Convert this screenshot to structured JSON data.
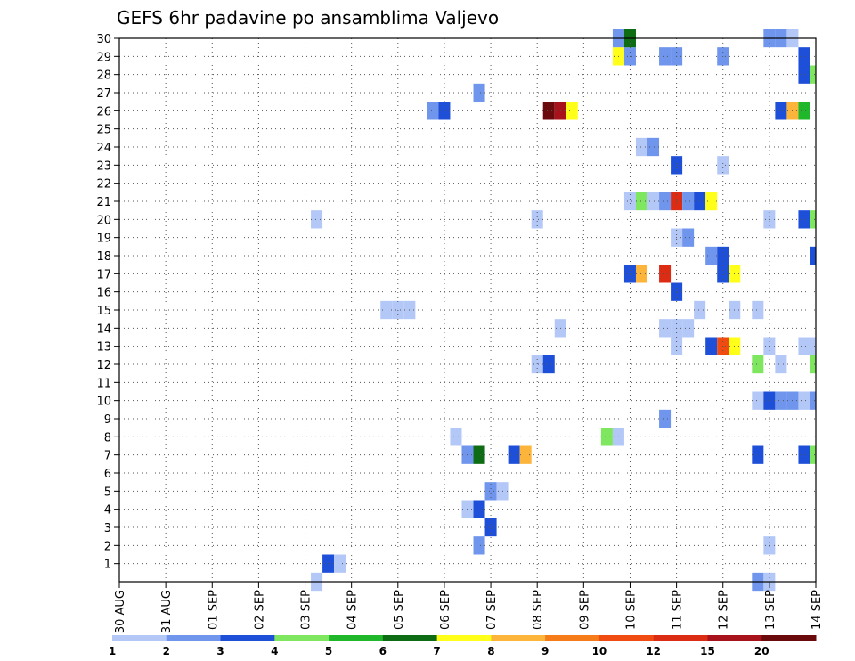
{
  "chart_data": {
    "type": "heatmap",
    "title": "GEFS 6hr padavine po ansamblima Valjevo",
    "xlabel": "",
    "ylabel": "",
    "x_ticks": [
      "30 AUG",
      "31 AUG",
      "01 SEP",
      "02 SEP",
      "03 SEP",
      "04 SEP",
      "05 SEP",
      "06 SEP",
      "07 SEP",
      "08 SEP",
      "09 SEP",
      "10 SEP",
      "11 SEP",
      "12 SEP",
      "13 SEP",
      "14 SEP"
    ],
    "x_range_steps": [
      0,
      60
    ],
    "x_step_hours": 6,
    "y_range": [
      0,
      30
    ],
    "y_ticks": [
      1,
      2,
      3,
      4,
      5,
      6,
      7,
      8,
      9,
      10,
      11,
      12,
      13,
      14,
      15,
      16,
      17,
      18,
      19,
      20,
      21,
      22,
      23,
      24,
      25,
      26,
      27,
      28,
      29,
      30
    ],
    "grid": "dotted",
    "color_levels": [
      {
        "label": "1",
        "color": "#b4c8f8"
      },
      {
        "label": "2",
        "color": "#6f95ec"
      },
      {
        "label": "3",
        "color": "#1e4fd8"
      },
      {
        "label": "4",
        "color": "#7ee65f"
      },
      {
        "label": "5",
        "color": "#20b82a"
      },
      {
        "label": "6",
        "color": "#0d6c14"
      },
      {
        "label": "7",
        "color": "#ffff1a"
      },
      {
        "label": "8",
        "color": "#fcb43a"
      },
      {
        "label": "9",
        "color": "#f57c18"
      },
      {
        "label": "10",
        "color": "#f04c12"
      },
      {
        "label": "12",
        "color": "#dc2c14"
      },
      {
        "label": "15",
        "color": "#a8121a"
      },
      {
        "label": "20",
        "color": "#6a0a0c"
      }
    ],
    "cells": [
      {
        "t": 17,
        "m": 0,
        "c": 0
      },
      {
        "t": 55,
        "m": 0,
        "c": 1
      },
      {
        "t": 56,
        "m": 0,
        "c": 0
      },
      {
        "t": 18,
        "m": 1,
        "c": 2
      },
      {
        "t": 19,
        "m": 1,
        "c": 0
      },
      {
        "t": 31,
        "m": 2,
        "c": 1
      },
      {
        "t": 56,
        "m": 2,
        "c": 0
      },
      {
        "t": 32,
        "m": 3,
        "c": 2
      },
      {
        "t": 30,
        "m": 4,
        "c": 0
      },
      {
        "t": 31,
        "m": 4,
        "c": 2
      },
      {
        "t": 32,
        "m": 5,
        "c": 1
      },
      {
        "t": 33,
        "m": 5,
        "c": 0
      },
      {
        "t": 30,
        "m": 7,
        "c": 1
      },
      {
        "t": 31,
        "m": 7,
        "c": 5
      },
      {
        "t": 34,
        "m": 7,
        "c": 2
      },
      {
        "t": 35,
        "m": 7,
        "c": 7
      },
      {
        "t": 55,
        "m": 7,
        "c": 2
      },
      {
        "t": 59,
        "m": 7,
        "c": 2
      },
      {
        "t": 60,
        "m": 7,
        "c": 3
      },
      {
        "t": 29,
        "m": 8,
        "c": 0
      },
      {
        "t": 42,
        "m": 8,
        "c": 3
      },
      {
        "t": 43,
        "m": 8,
        "c": 0
      },
      {
        "t": 47,
        "m": 9,
        "c": 1
      },
      {
        "t": 55,
        "m": 10,
        "c": 0
      },
      {
        "t": 56,
        "m": 10,
        "c": 2
      },
      {
        "t": 57,
        "m": 10,
        "c": 1
      },
      {
        "t": 58,
        "m": 10,
        "c": 1
      },
      {
        "t": 59,
        "m": 10,
        "c": 0
      },
      {
        "t": 60,
        "m": 10,
        "c": 1
      },
      {
        "t": 36,
        "m": 12,
        "c": 0
      },
      {
        "t": 37,
        "m": 12,
        "c": 2
      },
      {
        "t": 55,
        "m": 12,
        "c": 3
      },
      {
        "t": 57,
        "m": 12,
        "c": 0
      },
      {
        "t": 60,
        "m": 12,
        "c": 3
      },
      {
        "t": 48,
        "m": 13,
        "c": 0
      },
      {
        "t": 51,
        "m": 13,
        "c": 2
      },
      {
        "t": 52,
        "m": 13,
        "c": 9
      },
      {
        "t": 53,
        "m": 13,
        "c": 6
      },
      {
        "t": 56,
        "m": 13,
        "c": 0
      },
      {
        "t": 59,
        "m": 13,
        "c": 0
      },
      {
        "t": 60,
        "m": 13,
        "c": 0
      },
      {
        "t": 38,
        "m": 14,
        "c": 0
      },
      {
        "t": 47,
        "m": 14,
        "c": 0
      },
      {
        "t": 48,
        "m": 14,
        "c": 0
      },
      {
        "t": 49,
        "m": 14,
        "c": 0
      },
      {
        "t": 23,
        "m": 15,
        "c": 0
      },
      {
        "t": 24,
        "m": 15,
        "c": 0
      },
      {
        "t": 25,
        "m": 15,
        "c": 0
      },
      {
        "t": 50,
        "m": 15,
        "c": 0
      },
      {
        "t": 53,
        "m": 15,
        "c": 0
      },
      {
        "t": 55,
        "m": 15,
        "c": 0
      },
      {
        "t": 48,
        "m": 16,
        "c": 2
      },
      {
        "t": 44,
        "m": 17,
        "c": 2
      },
      {
        "t": 45,
        "m": 17,
        "c": 7
      },
      {
        "t": 47,
        "m": 17,
        "c": 10
      },
      {
        "t": 52,
        "m": 17,
        "c": 2
      },
      {
        "t": 53,
        "m": 17,
        "c": 6
      },
      {
        "t": 51,
        "m": 18,
        "c": 1
      },
      {
        "t": 52,
        "m": 18,
        "c": 2
      },
      {
        "t": 60,
        "m": 18,
        "c": 2
      },
      {
        "t": 48,
        "m": 19,
        "c": 0
      },
      {
        "t": 49,
        "m": 19,
        "c": 1
      },
      {
        "t": 17,
        "m": 20,
        "c": 0
      },
      {
        "t": 36,
        "m": 20,
        "c": 0
      },
      {
        "t": 56,
        "m": 20,
        "c": 0
      },
      {
        "t": 59,
        "m": 20,
        "c": 2
      },
      {
        "t": 60,
        "m": 20,
        "c": 3
      },
      {
        "t": 44,
        "m": 21,
        "c": 0
      },
      {
        "t": 45,
        "m": 21,
        "c": 3
      },
      {
        "t": 46,
        "m": 21,
        "c": 0
      },
      {
        "t": 47,
        "m": 21,
        "c": 1
      },
      {
        "t": 48,
        "m": 21,
        "c": 10
      },
      {
        "t": 49,
        "m": 21,
        "c": 1
      },
      {
        "t": 50,
        "m": 21,
        "c": 2
      },
      {
        "t": 51,
        "m": 21,
        "c": 6
      },
      {
        "t": 48,
        "m": 23,
        "c": 2
      },
      {
        "t": 52,
        "m": 23,
        "c": 0
      },
      {
        "t": 45,
        "m": 24,
        "c": 0
      },
      {
        "t": 46,
        "m": 24,
        "c": 1
      },
      {
        "t": 27,
        "m": 26,
        "c": 1
      },
      {
        "t": 28,
        "m": 26,
        "c": 2
      },
      {
        "t": 37,
        "m": 26,
        "c": 12
      },
      {
        "t": 38,
        "m": 26,
        "c": 11
      },
      {
        "t": 39,
        "m": 26,
        "c": 6
      },
      {
        "t": 57,
        "m": 26,
        "c": 2
      },
      {
        "t": 58,
        "m": 26,
        "c": 7
      },
      {
        "t": 59,
        "m": 26,
        "c": 4
      },
      {
        "t": 31,
        "m": 27,
        "c": 1
      },
      {
        "t": 59,
        "m": 28,
        "c": 2
      },
      {
        "t": 60,
        "m": 28,
        "c": 3
      },
      {
        "t": 43,
        "m": 29,
        "c": 6
      },
      {
        "t": 44,
        "m": 29,
        "c": 1
      },
      {
        "t": 47,
        "m": 29,
        "c": 1
      },
      {
        "t": 48,
        "m": 29,
        "c": 1
      },
      {
        "t": 52,
        "m": 29,
        "c": 1
      },
      {
        "t": 59,
        "m": 29,
        "c": 2
      },
      {
        "t": 43,
        "m": 30,
        "c": 1
      },
      {
        "t": 44,
        "m": 30,
        "c": 5
      },
      {
        "t": 56,
        "m": 30,
        "c": 1
      },
      {
        "t": 57,
        "m": 30,
        "c": 1
      },
      {
        "t": 58,
        "m": 30,
        "c": 0
      }
    ]
  }
}
